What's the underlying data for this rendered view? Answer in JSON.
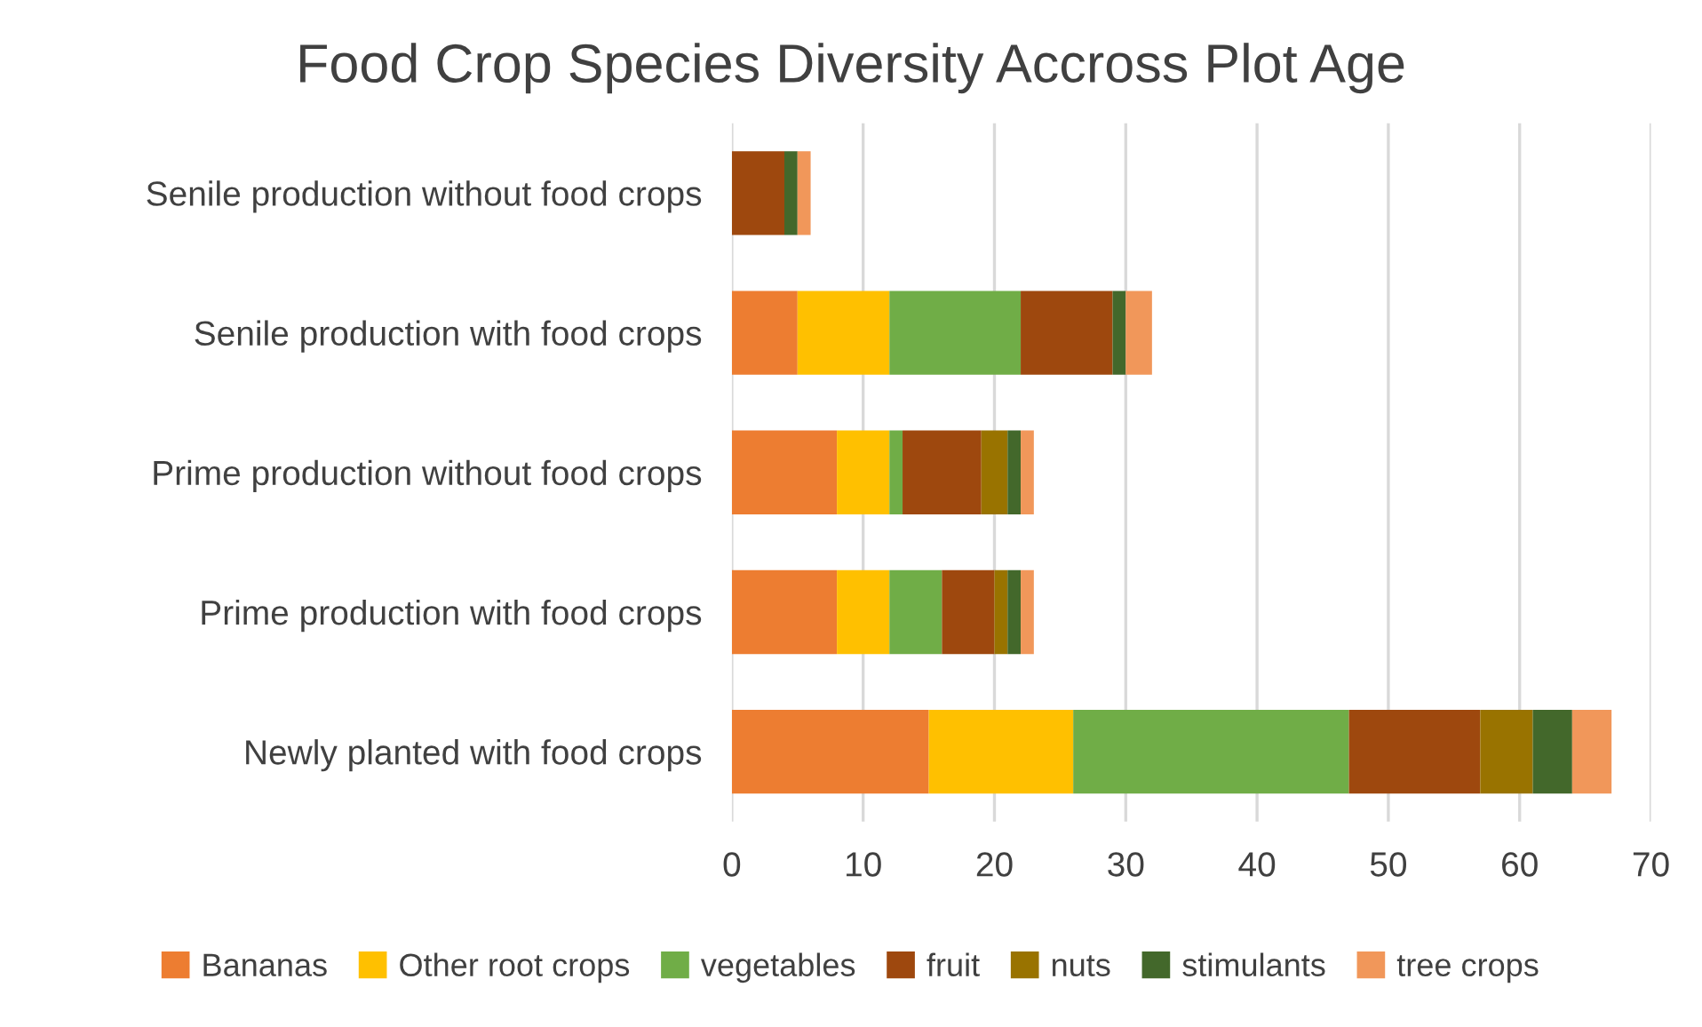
{
  "chart_data": {
    "type": "bar",
    "orientation": "horizontal",
    "stacked": true,
    "title": "Food Crop Species Diversity Accross Plot Age",
    "categories": [
      "Senile production without food crops",
      "Senile production with food crops",
      "Prime production without food crops",
      "Prime production with food crops",
      "Newly planted with food crops"
    ],
    "series": [
      {
        "name": "Bananas",
        "color": "#ed7d31",
        "values": [
          0,
          5,
          8,
          8,
          15
        ]
      },
      {
        "name": "Other root crops",
        "color": "#ffc000",
        "values": [
          0,
          7,
          4,
          4,
          11
        ]
      },
      {
        "name": "vegetables",
        "color": "#70ad47",
        "values": [
          0,
          10,
          1,
          4,
          21
        ]
      },
      {
        "name": "fruit",
        "color": "#9e480e",
        "values": [
          4,
          7,
          6,
          4,
          10
        ]
      },
      {
        "name": "nuts",
        "color": "#997300",
        "values": [
          0,
          0,
          2,
          1,
          4
        ]
      },
      {
        "name": "stimulants",
        "color": "#43682b",
        "values": [
          1,
          1,
          1,
          1,
          3
        ]
      },
      {
        "name": "tree crops",
        "color": "#f1975a",
        "values": [
          1,
          2,
          1,
          1,
          3
        ]
      }
    ],
    "xlim": [
      0,
      70
    ],
    "xticks": [
      0,
      10,
      20,
      30,
      40,
      50,
      60,
      70
    ],
    "grid": "x",
    "legend": "bottom"
  }
}
